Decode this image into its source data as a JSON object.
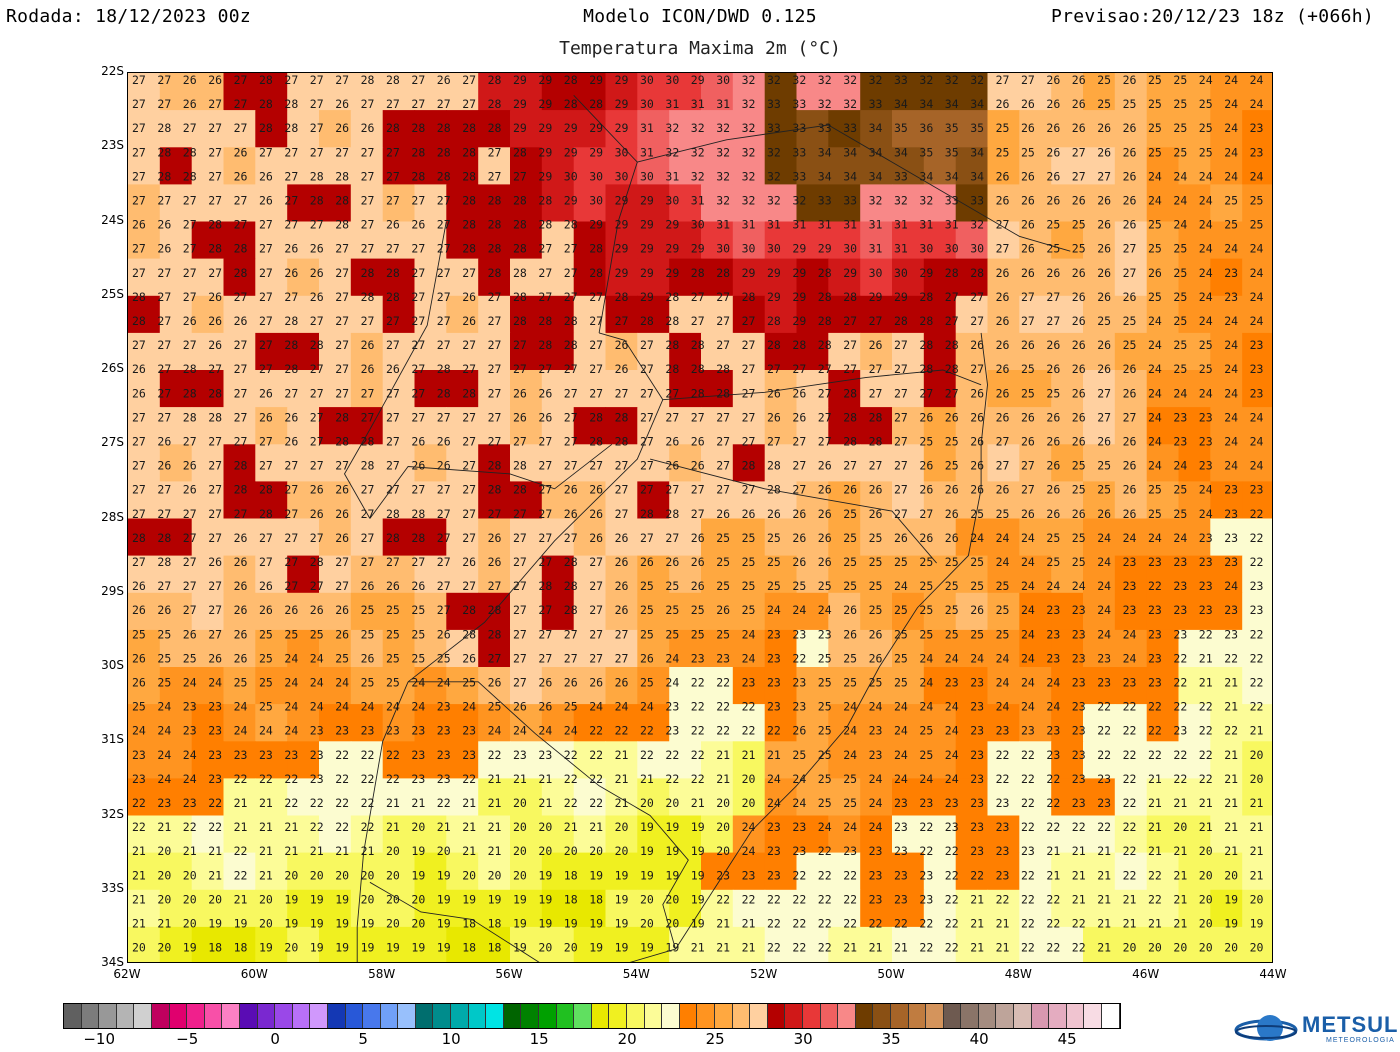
{
  "header": {
    "run": "Rodada: 18/12/2023 00z",
    "model": "Modelo ICON/DWD 0.125",
    "forecast": "Previsao:20/12/23 18z (+066h)",
    "variable": "Temperatura Maxima 2m (°C)"
  },
  "map": {
    "lat_labels": [
      "22S",
      "23S",
      "24S",
      "25S",
      "26S",
      "27S",
      "28S",
      "29S",
      "30S",
      "31S",
      "32S",
      "33S",
      "34S"
    ],
    "lon_labels": [
      "62W",
      "60W",
      "58W",
      "56W",
      "54W",
      "52W",
      "50W",
      "48W",
      "46W",
      "44W"
    ],
    "lat_range": [
      -34,
      -22
    ],
    "lon_range": [
      -62,
      -44
    ],
    "grid_step_deg": 0.25,
    "regions": [
      {
        "name": "hot-north-plateau",
        "value": 32
      },
      {
        "name": "coast-east",
        "value": 25
      },
      {
        "name": "south-cool",
        "value": 22
      }
    ]
  },
  "colorbar": {
    "min": -12,
    "step": 1,
    "labels": [
      "−10",
      "−5",
      "0",
      "5",
      "10",
      "15",
      "20",
      "25",
      "30",
      "35",
      "40",
      "45"
    ],
    "label_values": [
      -10,
      -5,
      0,
      5,
      10,
      15,
      20,
      25,
      30,
      35,
      40,
      45
    ],
    "colors": [
      "#606060",
      "#7c7c7c",
      "#989898",
      "#b4b4b4",
      "#d0d0d0",
      "#c0005e",
      "#e0006e",
      "#f0208c",
      "#f850a8",
      "#fc80c4",
      "#5a0cb4",
      "#7a28d0",
      "#9a48e8",
      "#b870f8",
      "#d098fc",
      "#1438b4",
      "#2858d8",
      "#4878ec",
      "#70a0f8",
      "#98c0fc",
      "#006e6e",
      "#008c8c",
      "#00aaaa",
      "#00c8c8",
      "#00e4e4",
      "#006400",
      "#008200",
      "#00a000",
      "#20c020",
      "#60e060",
      "#e8e800",
      "#f0f020",
      "#f8f860",
      "#fcfc98",
      "#fcfcd0",
      "#ff7f00",
      "#ff9420",
      "#ffa840",
      "#ffbc70",
      "#ffd0a0",
      "#b40000",
      "#d01818",
      "#e83838",
      "#f06060",
      "#f88888",
      "#6e3c00",
      "#8a5014",
      "#a66428",
      "#c07c40",
      "#d4945c",
      "#6e5a50",
      "#8a7468",
      "#a48c80",
      "#bea49a",
      "#d8bcb4",
      "#d898b0",
      "#e4acc0",
      "#f0c4d0",
      "#f8dce4",
      "#ffffff"
    ]
  },
  "logo": {
    "text": "METSUL",
    "sub": "METEOROLOGIA"
  }
}
